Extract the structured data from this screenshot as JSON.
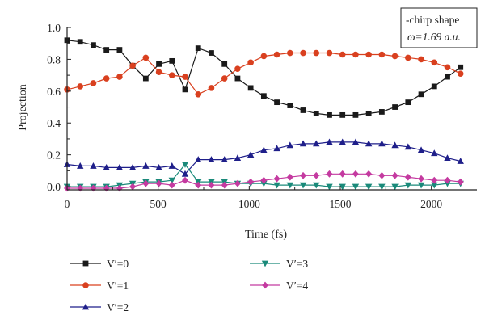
{
  "chart_data": {
    "type": "line",
    "xlabel": "Time (fs)",
    "ylabel": "Projection",
    "xlim": [
      0,
      2250
    ],
    "ylim": [
      -0.02,
      1.0
    ],
    "x_ticks": [
      0,
      500,
      1000,
      1500,
      2000
    ],
    "x_tick_labels": [
      "0",
      "500",
      "1000",
      "1500",
      "2000"
    ],
    "y_ticks": [
      0.0,
      0.2,
      0.4,
      0.6,
      0.8,
      1.0
    ],
    "y_tick_labels": [
      "0.0",
      "0.2",
      "0.4",
      "0.6",
      "0.8",
      "1.0"
    ],
    "grid": false,
    "legend_position": "below",
    "annotation": {
      "line1": "-chirp shape",
      "line2": "ω=1.69 a.u."
    },
    "x": [
      0,
      72,
      144,
      216,
      288,
      360,
      432,
      504,
      576,
      648,
      720,
      792,
      864,
      936,
      1008,
      1080,
      1152,
      1224,
      1296,
      1368,
      1440,
      1512,
      1584,
      1656,
      1728,
      1800,
      1872,
      1944,
      2016,
      2088,
      2160
    ],
    "series": [
      {
        "name": "V′=0",
        "color": "#1a1a1a",
        "marker": "square",
        "values": [
          0.92,
          0.91,
          0.89,
          0.86,
          0.86,
          0.76,
          0.68,
          0.77,
          0.79,
          0.61,
          0.87,
          0.84,
          0.77,
          0.68,
          0.62,
          0.57,
          0.53,
          0.51,
          0.48,
          0.46,
          0.45,
          0.45,
          0.45,
          0.46,
          0.47,
          0.5,
          0.53,
          0.58,
          0.63,
          0.69,
          0.75
        ]
      },
      {
        "name": "V′=1",
        "color": "#d9401f",
        "marker": "circle",
        "values": [
          0.61,
          0.63,
          0.65,
          0.68,
          0.69,
          0.76,
          0.81,
          0.72,
          0.7,
          0.69,
          0.58,
          0.62,
          0.68,
          0.74,
          0.78,
          0.82,
          0.83,
          0.84,
          0.84,
          0.84,
          0.84,
          0.83,
          0.83,
          0.83,
          0.83,
          0.82,
          0.81,
          0.8,
          0.78,
          0.75,
          0.71
        ]
      },
      {
        "name": "V′=2",
        "color": "#1f1f8a",
        "marker": "triangle-up",
        "values": [
          0.14,
          0.13,
          0.13,
          0.12,
          0.12,
          0.12,
          0.13,
          0.12,
          0.13,
          0.08,
          0.17,
          0.17,
          0.17,
          0.18,
          0.2,
          0.23,
          0.24,
          0.26,
          0.27,
          0.27,
          0.28,
          0.28,
          0.28,
          0.27,
          0.27,
          0.26,
          0.25,
          0.23,
          0.21,
          0.18,
          0.16
        ]
      },
      {
        "name": "V′=3",
        "color": "#1a8a7a",
        "marker": "triangle-down",
        "values": [
          0.0,
          0.0,
          0.0,
          0.0,
          0.01,
          0.02,
          0.03,
          0.03,
          0.04,
          0.14,
          0.03,
          0.03,
          0.03,
          0.02,
          0.02,
          0.02,
          0.01,
          0.01,
          0.01,
          0.01,
          0.0,
          0.0,
          0.0,
          0.0,
          0.0,
          0.0,
          0.01,
          0.01,
          0.01,
          0.02,
          0.02
        ]
      },
      {
        "name": "V′=4",
        "color": "#c43aa0",
        "marker": "diamond",
        "values": [
          -0.01,
          -0.01,
          -0.01,
          -0.01,
          -0.01,
          0.0,
          0.02,
          0.02,
          0.01,
          0.04,
          0.01,
          0.01,
          0.01,
          0.02,
          0.03,
          0.04,
          0.05,
          0.06,
          0.07,
          0.07,
          0.08,
          0.08,
          0.08,
          0.08,
          0.07,
          0.07,
          0.06,
          0.05,
          0.04,
          0.04,
          0.03
        ]
      }
    ]
  }
}
